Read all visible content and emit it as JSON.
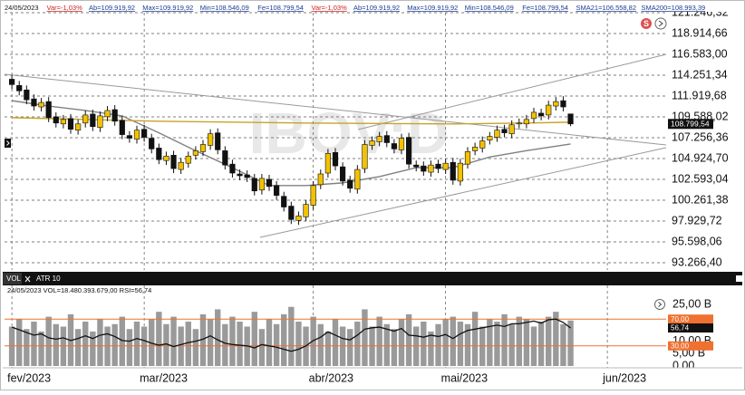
{
  "info": [
    "24/05/2023",
    "Var=-1,03%",
    "Ab=109.919,92",
    "Max=109.919,92",
    "Min=108.546,09",
    "Fe=108.799,54",
    "Var=-1,03%",
    "Ab=109.919,92",
    "Max=109.919,92",
    "Min=108.546,09",
    "Fe=108.799,54",
    "SMA21=106.558,82",
    "SMA200=108.993,39"
  ],
  "badge": "S",
  "chart_data": [
    {
      "type": "candlestick",
      "watermark": "IBOV:D",
      "up_color": "#f2c200",
      "down_color": "#111111",
      "open": [
        113800,
        113100,
        112600,
        111600,
        110700,
        111300,
        109600,
        108800,
        109400,
        108100,
        108900,
        109900,
        108400,
        109600,
        110400,
        109200,
        107500,
        107100,
        108200,
        107200,
        106100,
        104700,
        105300,
        103700,
        104400,
        105300,
        105700,
        106400,
        107800,
        105800,
        104300,
        103200,
        103100,
        102700,
        101400,
        102600,
        101900,
        100700,
        99600,
        98000,
        98400,
        99700,
        102000,
        103300,
        105600,
        104000,
        102500,
        101500,
        103800,
        106400,
        106800,
        107500,
        106600,
        105900,
        107300,
        104200,
        104100,
        103400,
        104300,
        103700,
        104500,
        102400,
        104300,
        105800,
        106100,
        107000,
        107300,
        108200,
        107700,
        108800,
        108800,
        109400,
        110000,
        109800,
        110800,
        111400,
        109919.92
      ],
      "high": [
        114300,
        113600,
        113100,
        112100,
        111700,
        111800,
        110100,
        109800,
        109900,
        109300,
        110300,
        110400,
        110200,
        110800,
        110900,
        109700,
        108000,
        108600,
        108700,
        107700,
        106600,
        105700,
        105800,
        105000,
        105700,
        106300,
        107000,
        108200,
        108300,
        106300,
        104800,
        103700,
        103600,
        103200,
        103200,
        103100,
        102400,
        101200,
        100100,
        99000,
        100300,
        102400,
        103700,
        106000,
        106100,
        104500,
        103000,
        104200,
        107000,
        107400,
        107900,
        108000,
        107100,
        107700,
        107800,
        104700,
        104600,
        104700,
        104800,
        104900,
        105000,
        104900,
        106200,
        106700,
        107400,
        107900,
        108600,
        108700,
        109200,
        109400,
        109800,
        110600,
        110500,
        111400,
        111800,
        111900,
        109919.92
      ],
      "low": [
        112700,
        112000,
        111000,
        110300,
        110200,
        109000,
        108400,
        108300,
        107700,
        107600,
        108400,
        108000,
        107900,
        109100,
        108600,
        107100,
        106700,
        106600,
        106800,
        105500,
        104300,
        104200,
        103300,
        103200,
        103900,
        104800,
        105200,
        105900,
        105400,
        103700,
        102800,
        102500,
        102300,
        100800,
        100900,
        101300,
        100300,
        99000,
        97600,
        97500,
        97900,
        99200,
        101500,
        102800,
        103600,
        101900,
        101100,
        101000,
        103300,
        105900,
        106300,
        106200,
        105500,
        105400,
        103800,
        103500,
        103000,
        102900,
        103300,
        103200,
        102000,
        101900,
        103800,
        105300,
        105600,
        106500,
        106800,
        107300,
        107200,
        108300,
        108300,
        108900,
        109200,
        109300,
        110300,
        110200,
        108546.09
      ],
      "close": [
        113200,
        112500,
        111500,
        110800,
        111200,
        109500,
        108900,
        109300,
        108200,
        108800,
        109800,
        108500,
        109700,
        110300,
        109100,
        107600,
        107200,
        108100,
        107300,
        106000,
        104800,
        105200,
        103800,
        104500,
        105200,
        105800,
        106500,
        107700,
        105900,
        104200,
        103300,
        103000,
        102800,
        101300,
        102700,
        101800,
        100800,
        99500,
        98100,
        98500,
        99800,
        101900,
        103200,
        105500,
        104100,
        102400,
        101600,
        103700,
        106500,
        106900,
        107400,
        106700,
        106000,
        107200,
        104300,
        104000,
        103500,
        104200,
        103800,
        104400,
        102500,
        104400,
        105700,
        106200,
        106900,
        107400,
        108100,
        107800,
        108700,
        108900,
        109300,
        110100,
        109700,
        110900,
        111300,
        110700,
        108799.54
      ],
      "last_label": "108.799,54",
      "lines": [
        {
          "color": "#808080",
          "x": [
            0,
            5,
            10,
            15,
            20,
            25,
            30,
            35,
            40,
            45,
            50,
            55,
            60,
            65,
            70,
            76
          ],
          "values": [
            111400,
            110800,
            110300,
            109700,
            107800,
            105800,
            103900,
            101900,
            101900,
            102200,
            102900,
            103900,
            103900,
            105100,
            105800,
            106558.82
          ]
        },
        {
          "color": "#c9a227",
          "x": [
            0,
            10,
            20,
            30,
            40,
            50,
            60,
            70,
            76
          ],
          "values": [
            109500,
            109300,
            109100,
            109000,
            108900,
            108850,
            108800,
            108900,
            108993.39
          ]
        }
      ],
      "xlim": [
        -1,
        89
      ],
      "xticks": [
        {
          "value": 0,
          "label": "fev/2023"
        },
        {
          "value": 18,
          "label": "mar/2023"
        },
        {
          "value": 41,
          "label": "abr/2023"
        },
        {
          "value": 59,
          "label": "mai/2023"
        },
        {
          "value": 81,
          "label": "jun/2023"
        }
      ],
      "ylim": [
        93266.4,
        121246.32
      ],
      "yticks": [
        {
          "value": 93266.4,
          "label": "93.266,40"
        },
        {
          "value": 95598.06,
          "label": "95.598,06"
        },
        {
          "value": 97929.72,
          "label": "97.929,72"
        },
        {
          "value": 100261.38,
          "label": "100.261,38"
        },
        {
          "value": 102593.04,
          "label": "102.593,04"
        },
        {
          "value": 104924.7,
          "label": "104.924,70"
        },
        {
          "value": 107256.36,
          "label": "107.256,36"
        },
        {
          "value": 109588.02,
          "label": "109.588,02"
        },
        {
          "value": 111919.68,
          "label": "111.919,68"
        },
        {
          "value": 114251.34,
          "label": "114.251,34"
        },
        {
          "value": 116583.0,
          "label": "116.583,00"
        },
        {
          "value": 118914.66,
          "label": "118.914,66"
        },
        {
          "value": 121246.32,
          "label": "121.246,32"
        }
      ],
      "grid": true
    },
    {
      "type": "bar",
      "tabs": [
        "VOL",
        "ATR 10"
      ],
      "subtitle": "24/05/2023 VOL=18.480.393.679,00 RSI=56,74",
      "color": "#9a9a9a",
      "values": [
        16,
        19,
        15,
        18,
        14,
        20,
        17,
        16,
        21,
        15,
        18,
        14,
        19,
        16,
        17,
        20,
        15,
        18,
        16,
        19,
        22,
        17,
        20,
        16,
        18,
        15,
        21,
        19,
        23,
        17,
        20,
        18,
        16,
        22,
        15,
        19,
        17,
        21,
        24,
        18,
        16,
        20,
        17,
        14,
        19,
        16,
        15,
        18,
        23,
        16,
        20,
        17,
        15,
        19,
        21,
        16,
        18,
        14,
        17,
        19,
        20,
        18,
        17,
        22,
        16,
        19,
        18,
        21,
        17,
        20,
        19,
        16,
        18,
        20,
        22,
        17,
        18.48
      ],
      "ylim": [
        0,
        27.2
      ],
      "yticks": [
        {
          "value": 0,
          "label": "0,00"
        },
        {
          "value": 5,
          "label": "5,00 B"
        },
        {
          "value": 10,
          "label": "10,00 B"
        },
        {
          "value": 25,
          "label": "25,00 B"
        }
      ],
      "series": [
        {
          "color": "#111111",
          "axis": "y2",
          "values": [
            58,
            54,
            50,
            46,
            48,
            42,
            40,
            42,
            38,
            41,
            45,
            41,
            46,
            48,
            44,
            38,
            37,
            41,
            38,
            34,
            31,
            33,
            29,
            32,
            35,
            37,
            40,
            45,
            39,
            34,
            32,
            31,
            30,
            27,
            32,
            30,
            28,
            25,
            22,
            25,
            30,
            38,
            43,
            51,
            46,
            41,
            39,
            46,
            55,
            57,
            58,
            55,
            52,
            56,
            46,
            45,
            43,
            46,
            44,
            47,
            41,
            48,
            53,
            55,
            57,
            59,
            61,
            59,
            63,
            63,
            65,
            67,
            64,
            69,
            70,
            65,
            56.74
          ],
          "last_label": "56,74"
        }
      ],
      "y2lim": [
        0,
        100
      ],
      "y2ticks": [
        {
          "value": 70,
          "label": "70,00"
        },
        {
          "value": 30,
          "label": "30,00"
        }
      ],
      "level_color": "#f07030"
    }
  ]
}
